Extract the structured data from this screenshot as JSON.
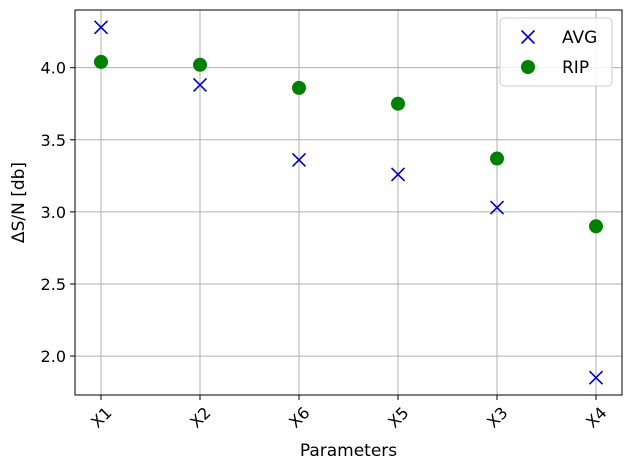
{
  "chart_data": {
    "type": "scatter",
    "categories": [
      "X1",
      "X2",
      "X6",
      "X5",
      "X3",
      "X4"
    ],
    "series": [
      {
        "name": "AVG",
        "marker": "x",
        "color": "#0000cc",
        "values": [
          4.28,
          3.88,
          3.36,
          3.26,
          3.03,
          1.85
        ]
      },
      {
        "name": "RIP",
        "marker": "circle",
        "color": "#008000",
        "values": [
          4.04,
          4.02,
          3.86,
          3.75,
          3.37,
          2.9
        ]
      }
    ],
    "title": "",
    "xlabel": "Parameters",
    "ylabel": "ΔS/N [db]",
    "ylim": [
      1.73,
      4.4
    ],
    "yticks": [
      2.0,
      2.5,
      3.0,
      3.5,
      4.0
    ],
    "ytick_labels": [
      "2.0",
      "2.5",
      "3.0",
      "3.5",
      "4.0"
    ],
    "grid": true,
    "legend_position": "top-right"
  }
}
